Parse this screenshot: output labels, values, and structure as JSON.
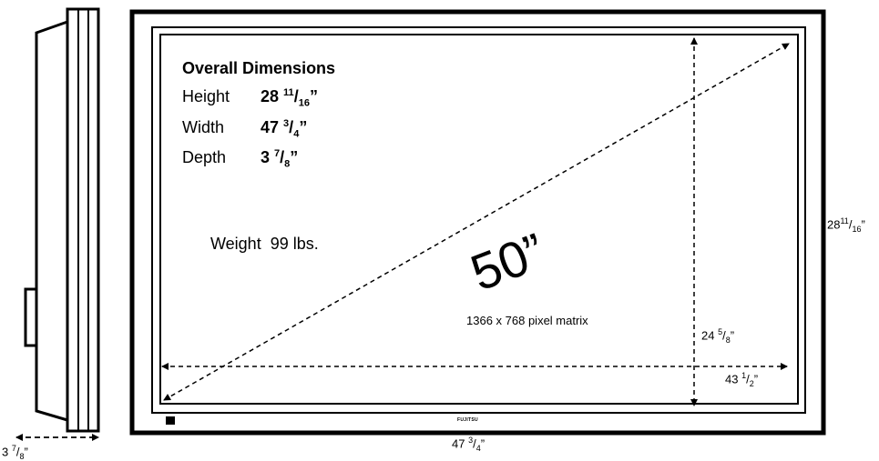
{
  "specs": {
    "heading": "Overall Dimensions",
    "height": {
      "label": "Height",
      "whole": "28",
      "num": "11",
      "den": "16",
      "unit": "”"
    },
    "width": {
      "label": "Width",
      "whole": "47",
      "num": "3",
      "den": "4",
      "unit": "”"
    },
    "depth": {
      "label": "Depth",
      "whole": "3",
      "num": "7",
      "den": "8",
      "unit": "”"
    }
  },
  "weight": {
    "label": "Weight",
    "value": "99 lbs."
  },
  "diagonal": "50”",
  "resolution": "1366 x 768 pixel matrix",
  "brand": "FUJITSU",
  "dimensions": {
    "overall_height": {
      "whole": "28",
      "num": "11",
      "den": "16",
      "unit": "”"
    },
    "screen_height": {
      "whole": "24",
      "num": "5",
      "den": "8",
      "unit": "”"
    },
    "screen_width": {
      "whole": "43",
      "num": "1",
      "den": "2",
      "unit": "”"
    },
    "overall_width": {
      "whole": "47",
      "num": "3",
      "den": "4",
      "unit": "”"
    },
    "depth": {
      "whole": "3",
      "num": "7",
      "den": "8",
      "unit": "”"
    }
  }
}
